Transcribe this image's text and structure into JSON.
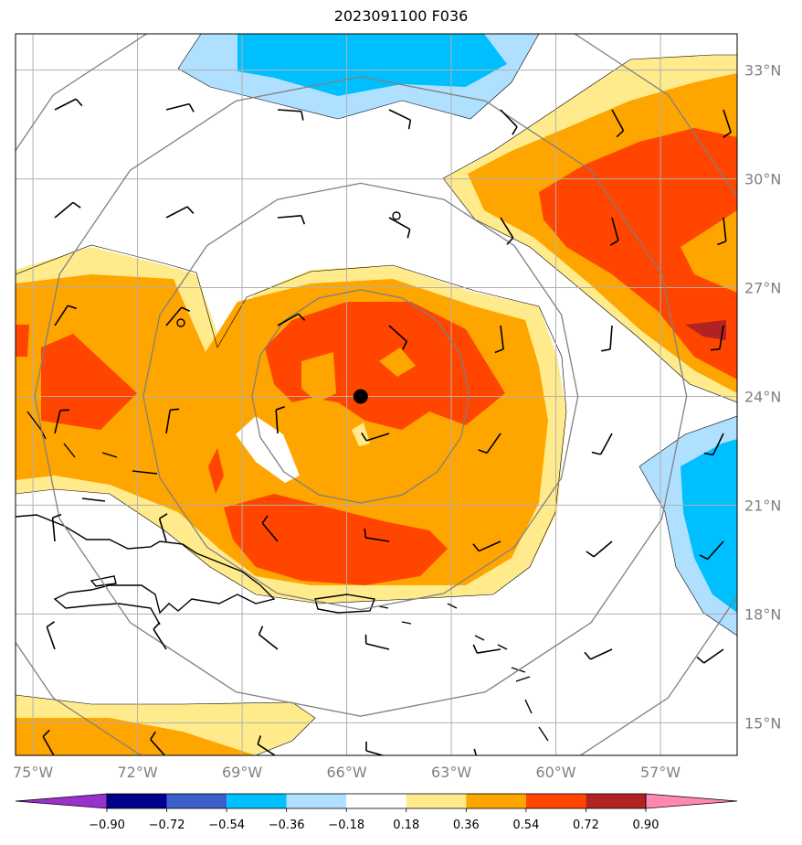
{
  "title": "2023091100 F036",
  "map": {
    "lon_range": [
      -75.5,
      -54.8
    ],
    "lat_range": [
      14.1,
      34.0
    ],
    "lon_ticks": [
      {
        "value": -75,
        "label": "75°W"
      },
      {
        "value": -72,
        "label": "72°W"
      },
      {
        "value": -69,
        "label": "69°W"
      },
      {
        "value": -66,
        "label": "66°W"
      },
      {
        "value": -63,
        "label": "63°W"
      },
      {
        "value": -60,
        "label": "60°W"
      },
      {
        "value": -57,
        "label": "57°W"
      }
    ],
    "lat_ticks": [
      {
        "value": 15,
        "label": "15°N"
      },
      {
        "value": 18,
        "label": "18°N"
      },
      {
        "value": 21,
        "label": "21°N"
      },
      {
        "value": 24,
        "label": "24°N"
      },
      {
        "value": 27,
        "label": "27°N"
      },
      {
        "value": 30,
        "label": "30°N"
      },
      {
        "value": 33,
        "label": "33°N"
      }
    ],
    "storm_center": {
      "lon": -65.6,
      "lat": 24.0
    },
    "range_ring_radii_deg": [
      3,
      6,
      9,
      12
    ],
    "grid": true
  },
  "colorbar": {
    "levels": [
      "−0.90",
      "−0.72",
      "−0.54",
      "−0.36",
      "−0.18",
      "0.18",
      "0.36",
      "0.54",
      "0.72",
      "0.90"
    ],
    "colors": [
      "#9932CC",
      "#00008B",
      "#3A5FCD",
      "#00BFFF",
      "#B0E0FF",
      "#FFFFFF",
      "#FFEB8C",
      "#FFA500",
      "#FF4500",
      "#B22222",
      "#FF88B0"
    ],
    "extend": "both"
  }
}
